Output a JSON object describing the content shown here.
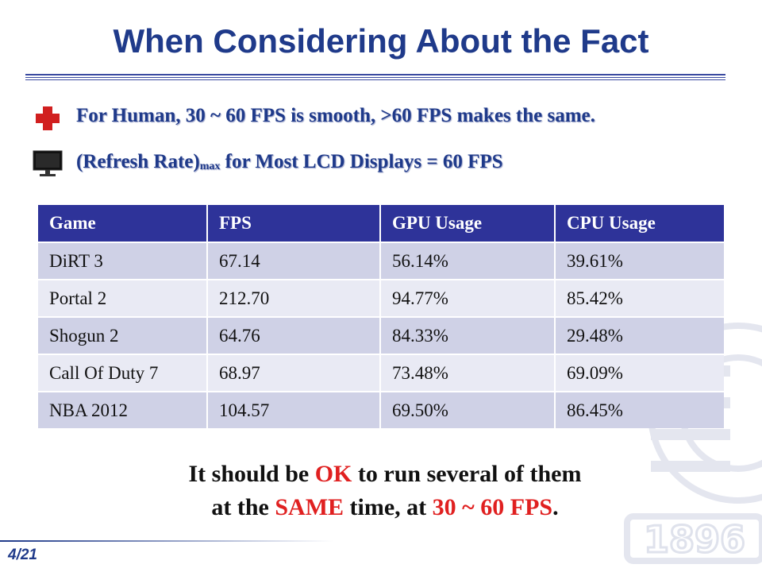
{
  "slide": {
    "title": "When Considering About the Fact",
    "bullets": [
      {
        "icon": "red-cross-icon",
        "text": "For Human, 30 ~ 60 FPS is smooth, >60 FPS makes the same."
      },
      {
        "icon": "monitor-icon",
        "pre": "(Refresh Rate)",
        "sub": "max",
        "post": " for Most LCD Displays = 60 FPS"
      }
    ],
    "table": {
      "headers": [
        "Game",
        "FPS",
        "GPU Usage",
        "CPU Usage"
      ],
      "rows": [
        [
          "DiRT 3",
          "67.14",
          "56.14%",
          "39.61%"
        ],
        [
          "Portal 2",
          "212.70",
          "94.77%",
          "85.42%"
        ],
        [
          "Shogun 2",
          "64.76",
          "84.33%",
          "29.48%"
        ],
        [
          "Call Of Duty 7",
          "68.97",
          "73.48%",
          "69.09%"
        ],
        [
          "NBA 2012",
          "104.57",
          "69.50%",
          "86.45%"
        ]
      ]
    },
    "conclusion": {
      "l1_a": "It should be ",
      "l1_b": "OK",
      "l1_c": " to run several of them",
      "l2_a": "at the ",
      "l2_b": "SAME",
      "l2_c": " time, at ",
      "l2_d": "30 ~ 60 FPS",
      "l2_e": "."
    },
    "page_number": "4/21",
    "watermark_text": "1896",
    "colors": {
      "title": "#1f3a8a",
      "header_bg": "#2e3399",
      "row_odd": "#cfd1e6",
      "row_even": "#e9eaf4",
      "highlight": "#e02020"
    }
  }
}
